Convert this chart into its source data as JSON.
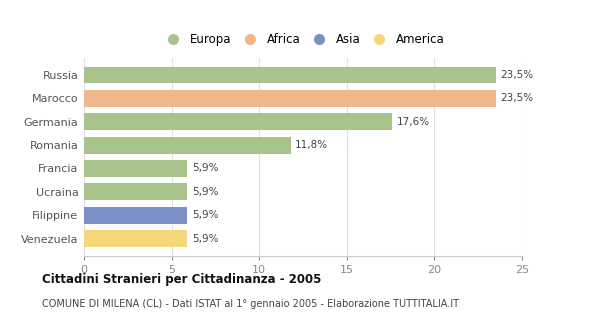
{
  "categories": [
    "Venezuela",
    "Filippine",
    "Ucraina",
    "Francia",
    "Romania",
    "Germania",
    "Marocco",
    "Russia"
  ],
  "values": [
    5.9,
    5.9,
    5.9,
    5.9,
    11.8,
    17.6,
    23.5,
    23.5
  ],
  "colors": [
    "#F5D67A",
    "#7B8FC7",
    "#A8C48A",
    "#A8C48A",
    "#A8C48A",
    "#A8C48A",
    "#F0B88A",
    "#A8C48A"
  ],
  "labels": [
    "5,9%",
    "5,9%",
    "5,9%",
    "5,9%",
    "11,8%",
    "17,6%",
    "23,5%",
    "23,5%"
  ],
  "legend_labels": [
    "Europa",
    "Africa",
    "Asia",
    "America"
  ],
  "legend_colors": [
    "#A8C48A",
    "#F0B88A",
    "#7B8FC7",
    "#F5D67A"
  ],
  "title_bold": "Cittadini Stranieri per Cittadinanza - 2005",
  "subtitle": "COMUNE DI MILENA (CL) - Dati ISTAT al 1° gennaio 2005 - Elaborazione TUTTITALIA.IT",
  "xlim": [
    0,
    25
  ],
  "xticks": [
    0,
    5,
    10,
    15,
    20,
    25
  ],
  "background_color": "#ffffff",
  "bar_height": 0.72,
  "grid_color": "#e0e0e0"
}
